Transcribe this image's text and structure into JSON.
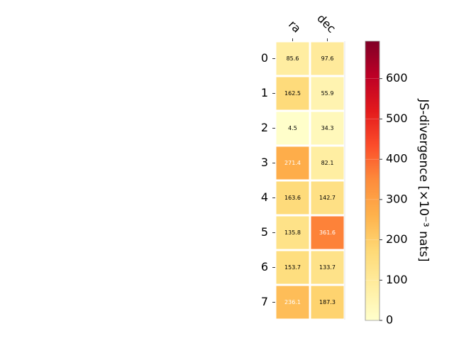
{
  "chart_data": {
    "type": "heatmap",
    "title": "",
    "x_categories": [
      "ra",
      "dec"
    ],
    "y_categories": [
      "0",
      "1",
      "2",
      "3",
      "4",
      "5",
      "6",
      "7"
    ],
    "values": [
      [
        85.6,
        97.6
      ],
      [
        162.5,
        55.9
      ],
      [
        4.5,
        34.3
      ],
      [
        271.4,
        82.1
      ],
      [
        163.6,
        142.7
      ],
      [
        135.8,
        361.6
      ],
      [
        153.7,
        133.7
      ],
      [
        236.1,
        187.3
      ]
    ],
    "cell_labels": [
      [
        "85.6",
        "97.6"
      ],
      [
        "162.5",
        "55.9"
      ],
      [
        "4.5",
        "34.3"
      ],
      [
        "271.4",
        "82.1"
      ],
      [
        "163.6",
        "142.7"
      ],
      [
        "135.8",
        "361.6"
      ],
      [
        "153.7",
        "133.7"
      ],
      [
        "236.1",
        "187.3"
      ]
    ],
    "colorbar": {
      "label": "JS-divergence [×10⁻³ nats]",
      "range": [
        0,
        693
      ],
      "ticks": [
        "0",
        "100",
        "200",
        "300",
        "400",
        "500",
        "600"
      ],
      "tick_values": [
        0,
        100,
        200,
        300,
        400,
        500,
        600
      ],
      "colormap": "YlOrRd"
    },
    "x_tick_position": "top",
    "grid": false
  }
}
